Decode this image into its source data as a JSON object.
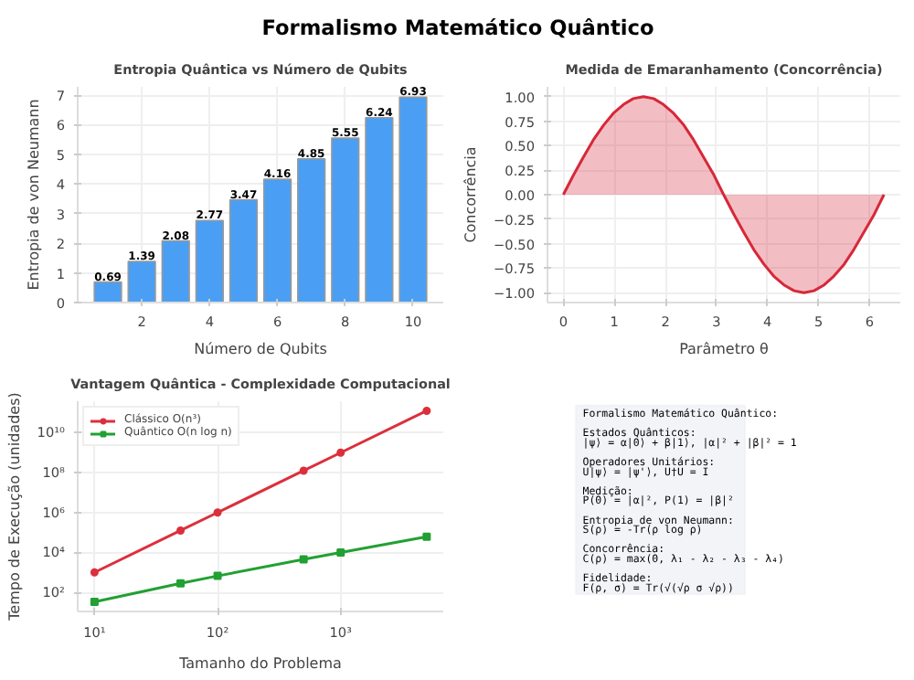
{
  "chart_data": [
    {
      "type": "other",
      "title": "Formalismo Matemático Quântico"
    },
    {
      "type": "bar",
      "title": "Entropia Quântica vs Número de Qubits",
      "xlabel": "Número de Qubits",
      "ylabel": "Entropia de von Neumann",
      "x": [
        1,
        2,
        3,
        4,
        5,
        6,
        7,
        8,
        9,
        10
      ],
      "values": [
        0.69,
        1.39,
        2.08,
        2.77,
        3.47,
        4.16,
        4.85,
        5.55,
        6.24,
        6.93
      ],
      "color": "#4a9ff5",
      "xlim": [
        0.11,
        10.89
      ],
      "xticks": [
        2,
        4,
        6,
        8,
        10
      ],
      "ylim": [
        0,
        7.28
      ],
      "yticks": [
        0,
        1,
        2,
        3,
        4,
        5,
        6,
        7
      ],
      "grid": true,
      "data_labels": true
    },
    {
      "type": "area",
      "title": "Medida de Emaranhamento (Concorrência)",
      "xlabel": "Parâmetro θ",
      "ylabel": "Concorrência",
      "x": [
        0,
        0.2,
        0.39,
        0.59,
        0.79,
        0.98,
        1.18,
        1.37,
        1.57,
        1.77,
        1.96,
        2.16,
        2.36,
        2.55,
        2.75,
        2.95,
        3.14,
        3.34,
        3.53,
        3.73,
        3.93,
        4.12,
        4.32,
        4.52,
        4.71,
        4.91,
        5.11,
        5.3,
        5.5,
        5.69,
        5.89,
        6.09,
        6.28
      ],
      "series": [
        {
          "color": "#d62839",
          "values": [
            0,
            0.2,
            0.38,
            0.56,
            0.71,
            0.83,
            0.92,
            0.98,
            1,
            0.98,
            0.92,
            0.83,
            0.71,
            0.56,
            0.38,
            0.2,
            0,
            -0.2,
            -0.38,
            -0.56,
            -0.71,
            -0.83,
            -0.92,
            -0.98,
            -1,
            -0.98,
            -0.92,
            -0.83,
            -0.71,
            -0.56,
            -0.38,
            -0.2,
            0
          ]
        }
      ],
      "xlim": [
        -0.31,
        6.6
      ],
      "xticks": [
        0,
        1,
        2,
        3,
        4,
        5,
        6
      ],
      "ylim": [
        -1.1,
        1.1
      ],
      "yticks": [
        {
          "value": -1,
          "label": "−1.00"
        },
        {
          "value": -0.75,
          "label": "−0.75"
        },
        {
          "value": -0.5,
          "label": "−0.50"
        },
        {
          "value": -0.25,
          "label": "−0.25"
        },
        {
          "value": 0,
          "label": "0.00"
        },
        {
          "value": 0.25,
          "label": "0.25"
        },
        {
          "value": 0.5,
          "label": "0.50"
        },
        {
          "value": 0.75,
          "label": "0.75"
        },
        {
          "value": 1,
          "label": "1.00"
        }
      ],
      "grid": true
    },
    {
      "type": "line",
      "title": "Vantagem Quântica - Complexidade Computacional",
      "xlabel": "Tamanho do Problema",
      "ylabel": "Tempo de Execução (unidades)",
      "x": [
        10,
        50,
        100,
        500,
        1000,
        5000
      ],
      "log": "xy",
      "legend": "top left",
      "series": [
        {
          "name": "Clássico O(n³)",
          "color": "#dc2f3c",
          "marker": "circle",
          "values": [
            1000,
            125000,
            1000000,
            125000000,
            1000000000,
            125000000000
          ]
        },
        {
          "name": "Quântico O(n log n)",
          "color": "#22a033",
          "marker": "square",
          "values": [
            33,
            282,
            664,
            4480,
            9970,
            61400
          ]
        }
      ],
      "xlim": [
        7.3,
        6820
      ],
      "xticks": [
        {
          "value": 10,
          "label": "10¹"
        },
        {
          "value": 100,
          "label": "10²"
        },
        {
          "value": 1000,
          "label": "10³"
        }
      ],
      "ylim": [
        11,
        377000000000
      ],
      "yticks": [
        {
          "value": 100,
          "label": "10²"
        },
        {
          "value": 10000,
          "label": "10⁴"
        },
        {
          "value": 1000000,
          "label": "10⁶"
        },
        {
          "value": 100000000,
          "label": "10⁸"
        },
        {
          "value": 10000000000,
          "label": "10¹⁰"
        }
      ],
      "grid": true
    },
    {
      "type": "other",
      "annotations": [
        "Formalismo Matemático Quântico:",
        "Estados Quânticos:",
        "|ψ⟩ = α|0⟩ + β|1⟩, |α|² + |β|² = 1",
        "Operadores Unitários:",
        "U|ψ⟩ = |ψ'⟩, U†U = I",
        "Medição:",
        "P(0) = |α|², P(1) = |β|²",
        "Entropia de von Neumann:",
        "S(ρ) = -Tr(ρ log ρ)",
        "Concorrência:",
        "C(ρ) = max(0, λ₁ - λ₂ - λ₃ - λ₄)",
        "Fidelidade:",
        "F(ρ, σ) = Tr(√(√ρ σ √ρ))"
      ]
    }
  ]
}
